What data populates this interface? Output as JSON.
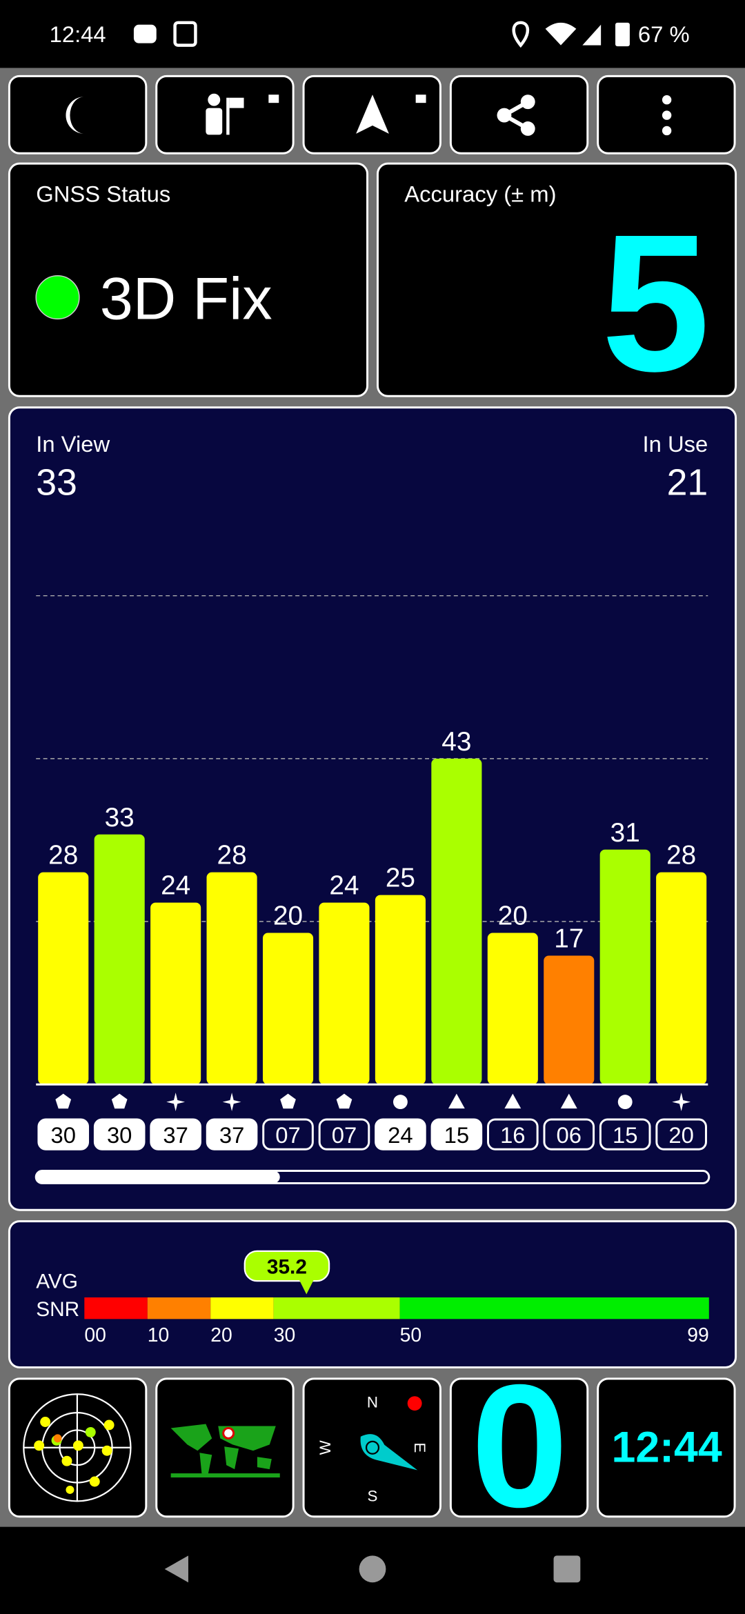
{
  "status_bar": {
    "time": "12:44",
    "battery": "67 %"
  },
  "gnss_status": {
    "label": "GNSS Status",
    "fix": "3D Fix"
  },
  "accuracy": {
    "label": "Accuracy (± m)",
    "value": 5
  },
  "satellites": {
    "in_view_label": "In View",
    "in_view": 33,
    "in_use_label": "In Use",
    "in_use": 21
  },
  "chart_data": {
    "type": "bar",
    "categories": [
      "30",
      "30",
      "37",
      "37",
      "07",
      "07",
      "24",
      "15",
      "16",
      "06",
      "15",
      "20"
    ],
    "values": [
      28,
      33,
      24,
      28,
      20,
      24,
      25,
      43,
      20,
      17,
      31,
      28
    ],
    "colors": [
      "#ffff00",
      "#aaff00",
      "#ffff00",
      "#ffff00",
      "#ffff00",
      "#ffff00",
      "#ffff00",
      "#aaff00",
      "#ffff00",
      "#ff8000",
      "#aaff00",
      "#ffff00"
    ],
    "in_use": [
      true,
      true,
      true,
      true,
      false,
      false,
      true,
      true,
      false,
      false,
      false,
      false
    ],
    "shapes": [
      "pentagon",
      "pentagon",
      "star",
      "star",
      "pentagon",
      "pentagon",
      "circle",
      "triangle",
      "triangle",
      "triangle",
      "circle",
      "star"
    ],
    "ylim": [
      0,
      64.5
    ]
  },
  "snr": {
    "label_1": "AVG",
    "label_2": "SNR",
    "average": 35.2,
    "marker_color": "#aaff00",
    "xlim": [
      0,
      99
    ],
    "xticks": [
      {
        "value": 0,
        "label": "00"
      },
      10,
      20,
      30,
      50,
      99
    ],
    "band_colors": [
      "#ff0000",
      "#ff8000",
      "#ffff00",
      "#aaff00",
      "#00ee00"
    ]
  },
  "compass": {
    "north": "N",
    "east": "E",
    "south": "S",
    "west": "W"
  },
  "speed": 0,
  "clock": "12:44"
}
